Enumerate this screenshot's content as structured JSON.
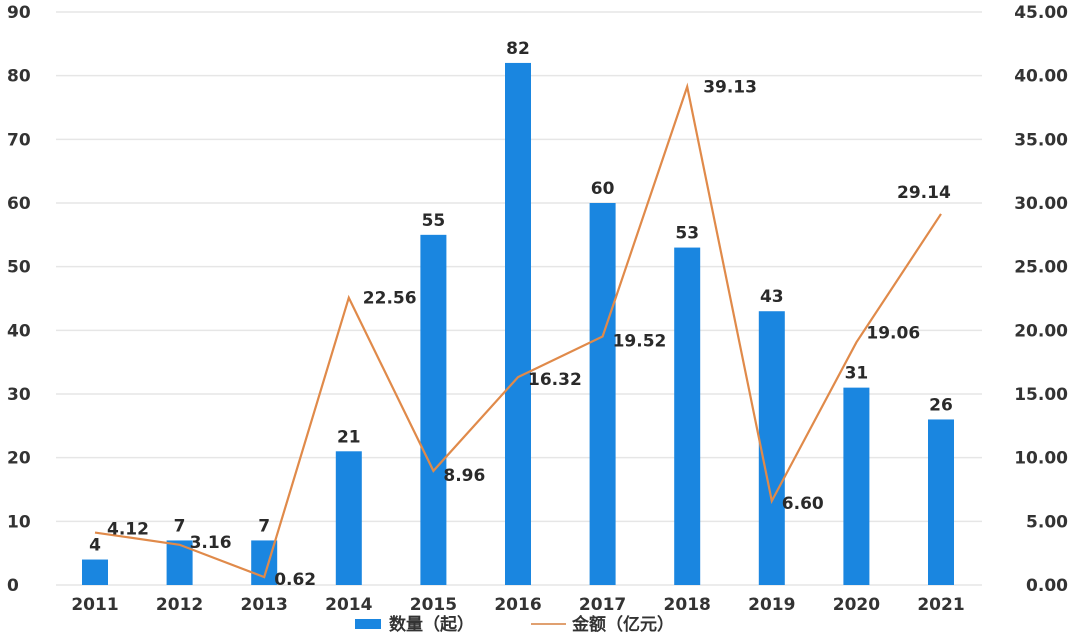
{
  "chart_data": {
    "type": "bar+line",
    "title": "",
    "categories": [
      "2011",
      "2012",
      "2013",
      "2014",
      "2015",
      "2016",
      "2017",
      "2018",
      "2019",
      "2020",
      "2021"
    ],
    "series": [
      {
        "name": "数量（起）",
        "type": "bar",
        "axis": "left",
        "color": "#1a86e0",
        "values": [
          4,
          7,
          7,
          21,
          55,
          82,
          60,
          53,
          43,
          31,
          26
        ]
      },
      {
        "name": "金额（亿元）",
        "type": "line",
        "axis": "right",
        "color": "#e08a4a",
        "values": [
          4.12,
          3.16,
          0.62,
          22.56,
          8.96,
          16.32,
          19.52,
          39.13,
          6.6,
          19.06,
          29.14
        ]
      }
    ],
    "bar_labels": [
      "4",
      "7",
      "7",
      "21",
      "55",
      "82",
      "60",
      "53",
      "43",
      "31",
      "26"
    ],
    "line_labels": [
      "4.12",
      "3.16",
      "0.62",
      "22.56",
      "8.96",
      "16.32",
      "19.52",
      "39.13",
      "6.60",
      "19.06",
      "29.14"
    ],
    "y_left": {
      "label": "",
      "range": [
        0,
        90
      ],
      "ticks": [
        "0",
        "10",
        "20",
        "30",
        "40",
        "50",
        "60",
        "70",
        "80",
        "90"
      ]
    },
    "y_right": {
      "label": "",
      "range": [
        0,
        45
      ],
      "ticks": [
        "0.00",
        "5.00",
        "10.00",
        "15.00",
        "20.00",
        "25.00",
        "30.00",
        "35.00",
        "40.00",
        "45.00"
      ]
    },
    "xlabel": "",
    "grid": true,
    "legend_position": "bottom"
  },
  "legend": {
    "bar_label": "数量（起）",
    "line_label": "金额（亿元）"
  }
}
